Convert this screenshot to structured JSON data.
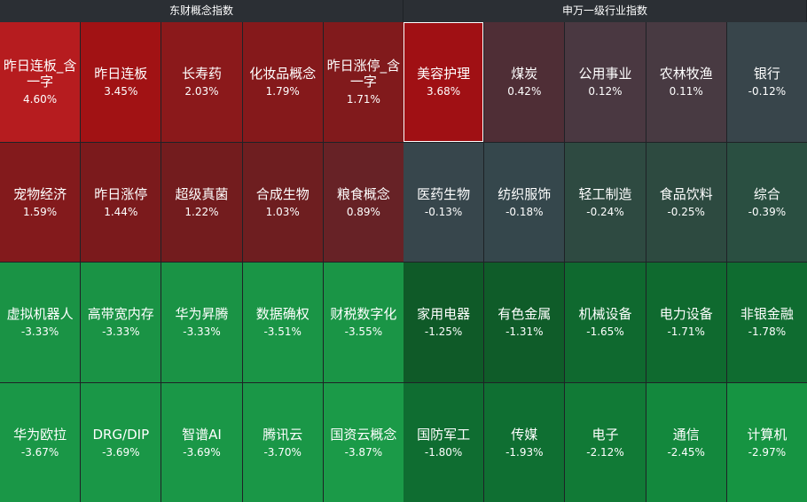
{
  "panels": [
    {
      "title": "东财概念指数",
      "tiles": [
        {
          "name": "昨日连板_含一字",
          "change": "4.60%",
          "color": "#b61c1f"
        },
        {
          "name": "昨日连板",
          "change": "3.45%",
          "color": "#a11214"
        },
        {
          "name": "长寿药",
          "change": "2.03%",
          "color": "#8b191b"
        },
        {
          "name": "化妆品概念",
          "change": "1.79%",
          "color": "#85191b"
        },
        {
          "name": "昨日涨停_含一字",
          "change": "1.71%",
          "color": "#811a1c"
        },
        {
          "name": "宠物经济",
          "change": "1.59%",
          "color": "#831a1c"
        },
        {
          "name": "昨日涨停",
          "change": "1.44%",
          "color": "#7b1a1c"
        },
        {
          "name": "超级真菌",
          "change": "1.22%",
          "color": "#731c1e"
        },
        {
          "name": "合成生物",
          "change": "1.03%",
          "color": "#6e1e20"
        },
        {
          "name": "粮食概念",
          "change": "0.89%",
          "color": "#672226"
        },
        {
          "name": "虚拟机器人",
          "change": "-3.33%",
          "color": "#1a9345"
        },
        {
          "name": "高带宽内存",
          "change": "-3.33%",
          "color": "#1a9345"
        },
        {
          "name": "华为昇腾",
          "change": "-3.33%",
          "color": "#1a9345"
        },
        {
          "name": "数据确权",
          "change": "-3.51%",
          "color": "#1a9546"
        },
        {
          "name": "财税数字化",
          "change": "-3.55%",
          "color": "#1a9546"
        },
        {
          "name": "华为欧拉",
          "change": "-3.67%",
          "color": "#1a9747"
        },
        {
          "name": "DRG/DIP",
          "change": "-3.69%",
          "color": "#1a9747"
        },
        {
          "name": "智谱AI",
          "change": "-3.69%",
          "color": "#1a9747"
        },
        {
          "name": "腾讯云",
          "change": "-3.70%",
          "color": "#1a9747"
        },
        {
          "name": "国资云概念",
          "change": "-3.87%",
          "color": "#1b9a48"
        }
      ]
    },
    {
      "title": "申万一级行业指数",
      "tiles": [
        {
          "name": "美容护理",
          "change": "3.68%",
          "color": "#a01014",
          "selected": true
        },
        {
          "name": "煤炭",
          "change": "0.42%",
          "color": "#4f2e36"
        },
        {
          "name": "公用事业",
          "change": "0.12%",
          "color": "#4a3841"
        },
        {
          "name": "农林牧渔",
          "change": "0.11%",
          "color": "#483a42"
        },
        {
          "name": "银行",
          "change": "-0.12%",
          "color": "#38454b"
        },
        {
          "name": "医药生物",
          "change": "-0.13%",
          "color": "#37464c"
        },
        {
          "name": "纺织服饰",
          "change": "-0.18%",
          "color": "#35474c"
        },
        {
          "name": "轻工制造",
          "change": "-0.24%",
          "color": "#2e4a41"
        },
        {
          "name": "食品饮料",
          "change": "-0.25%",
          "color": "#2d4a40"
        },
        {
          "name": "综合",
          "change": "-0.39%",
          "color": "#2a4f41"
        },
        {
          "name": "家用电器",
          "change": "-1.25%",
          "color": "#0f5a28"
        },
        {
          "name": "有色金属",
          "change": "-1.31%",
          "color": "#0f5c29"
        },
        {
          "name": "机械设备",
          "change": "-1.65%",
          "color": "#0f692f"
        },
        {
          "name": "电力设备",
          "change": "-1.71%",
          "color": "#0f6a2f"
        },
        {
          "name": "非银金融",
          "change": "-1.78%",
          "color": "#0f6c30"
        },
        {
          "name": "国防军工",
          "change": "-1.80%",
          "color": "#0f6d31"
        },
        {
          "name": "传媒",
          "change": "-1.93%",
          "color": "#0f6f32"
        },
        {
          "name": "电子",
          "change": "-2.12%",
          "color": "#117a36"
        },
        {
          "name": "通信",
          "change": "-2.45%",
          "color": "#13883d"
        },
        {
          "name": "计算机",
          "change": "-2.97%",
          "color": "#169442"
        }
      ]
    }
  ]
}
